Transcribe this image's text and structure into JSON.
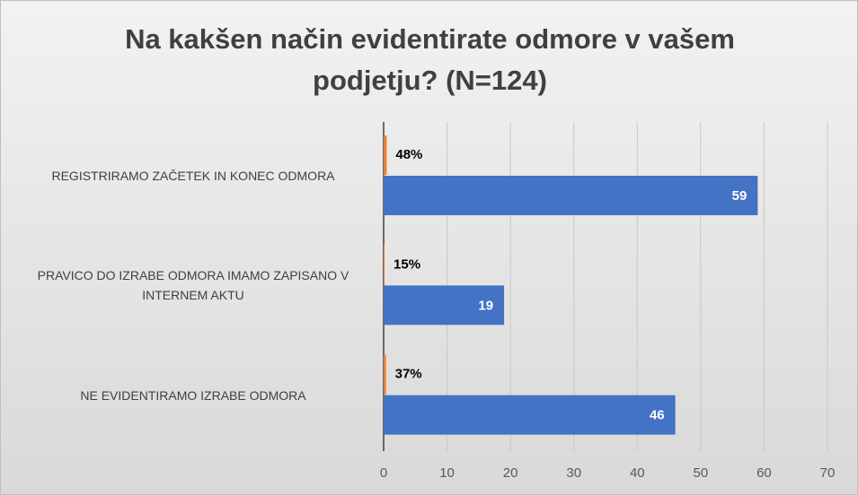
{
  "chart_data": {
    "type": "hbar",
    "title": "Na kakšen način evidentirate odmore v vašem podjetju? (N=124)",
    "categories": [
      "REGISTRIRAMO ZAČETEK IN KONEC ODMORA",
      "PRAVICO DO IZRABE ODMORA IMAMO ZAPISANO V INTERNEM AKTU",
      "NE EVIDENTIRAMO IZRABE ODMORA"
    ],
    "series": [
      {
        "color": "#ed7d31",
        "values": [
          0.48,
          0.15,
          0.37
        ],
        "value_labels": [
          "48%",
          "15%",
          "37%"
        ]
      },
      {
        "color": "#4472c4",
        "values": [
          59,
          19,
          46
        ]
      }
    ],
    "xlim": [
      0,
      70
    ],
    "xticks": [
      0,
      10,
      20,
      30,
      40,
      50,
      60,
      70
    ],
    "grid": true
  }
}
